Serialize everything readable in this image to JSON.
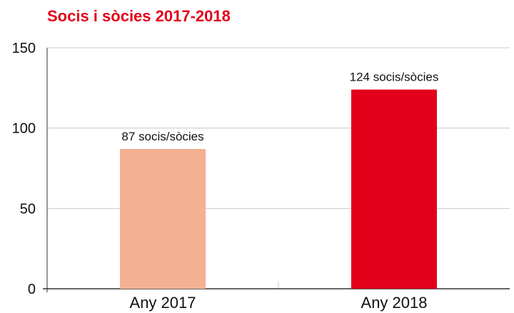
{
  "chart_data": {
    "type": "bar",
    "title": "Socis i sòcies 2017-2018",
    "categories": [
      "Any 2017",
      "Any 2018"
    ],
    "values": [
      87,
      124
    ],
    "data_labels": [
      "87 socis/sòcies",
      "124 socis/sòcies"
    ],
    "colors": [
      "#f4b092",
      "#e2001a"
    ],
    "title_color": "#e2001a",
    "ylim": [
      0,
      150
    ],
    "yticks": [
      0,
      50,
      100,
      150
    ],
    "grid": true,
    "legend": "none"
  }
}
